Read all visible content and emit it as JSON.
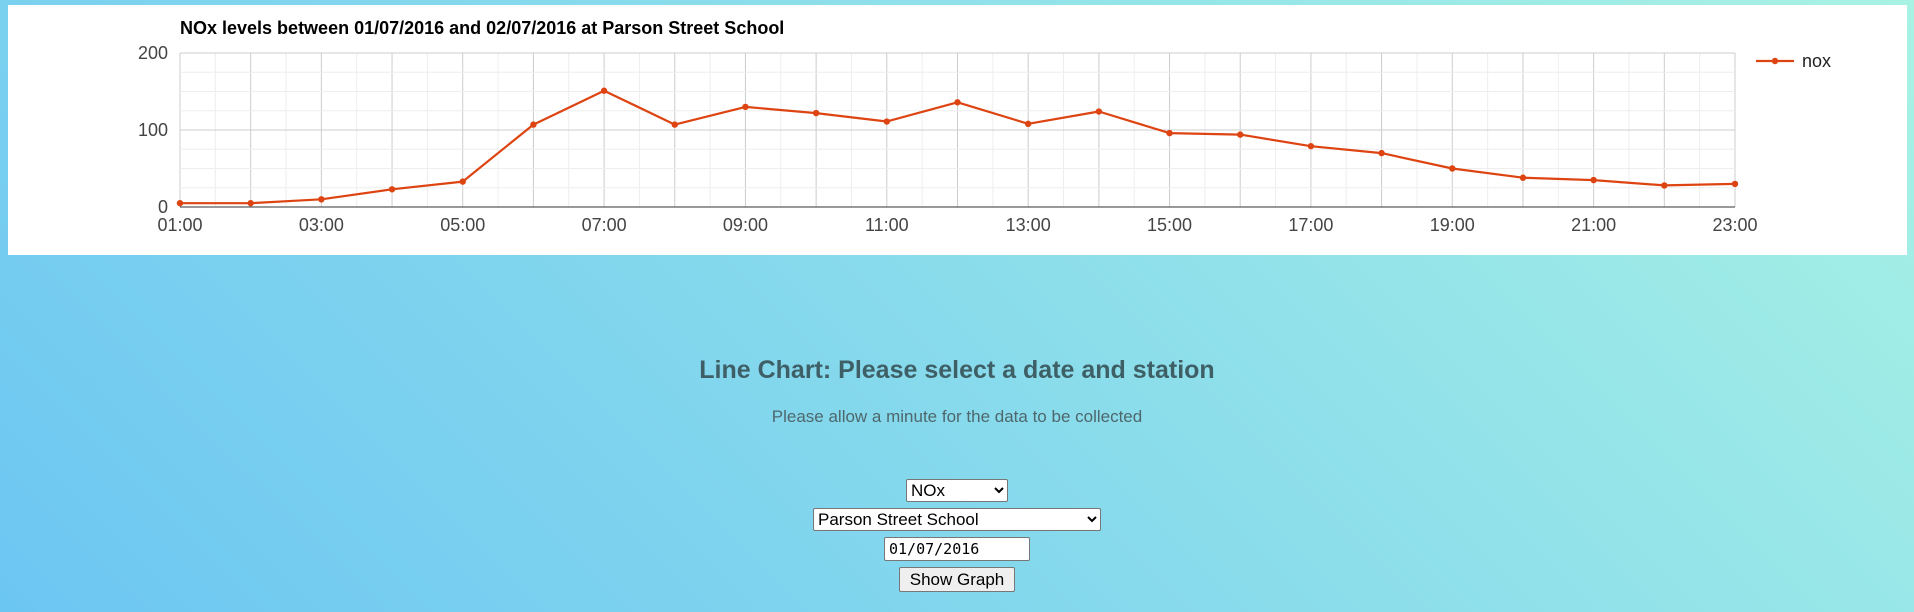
{
  "chart_data": {
    "type": "line",
    "title": "NOx levels between 01/07/2016 and 02/07/2016 at Parson Street School",
    "x": [
      "01:00",
      "02:00",
      "03:00",
      "04:00",
      "05:00",
      "06:00",
      "07:00",
      "08:00",
      "09:00",
      "10:00",
      "11:00",
      "12:00",
      "13:00",
      "14:00",
      "15:00",
      "16:00",
      "17:00",
      "18:00",
      "19:00",
      "20:00",
      "21:00",
      "22:00",
      "23:00"
    ],
    "x_tick_labels": [
      "01:00",
      "03:00",
      "05:00",
      "07:00",
      "09:00",
      "11:00",
      "13:00",
      "15:00",
      "17:00",
      "19:00",
      "21:00",
      "23:00"
    ],
    "series": [
      {
        "name": "nox",
        "values": [
          5,
          5,
          10,
          23,
          33,
          107,
          151,
          107,
          130,
          122,
          111,
          136,
          108,
          124,
          96,
          94,
          79,
          70,
          50,
          38,
          35,
          28,
          30
        ]
      }
    ],
    "y_ticks": [
      0,
      100,
      200
    ],
    "ylim": [
      0,
      200
    ],
    "grid": true,
    "legend": "top-right",
    "line_color": "#dd4411"
  },
  "page": {
    "heading": "Line Chart: Please select a date and station",
    "subtext": "Please allow a minute for the data to be collected"
  },
  "form": {
    "pollutant": "NOx",
    "station": "Parson Street School",
    "date": "01/07/2016",
    "submit_label": "Show Graph"
  }
}
